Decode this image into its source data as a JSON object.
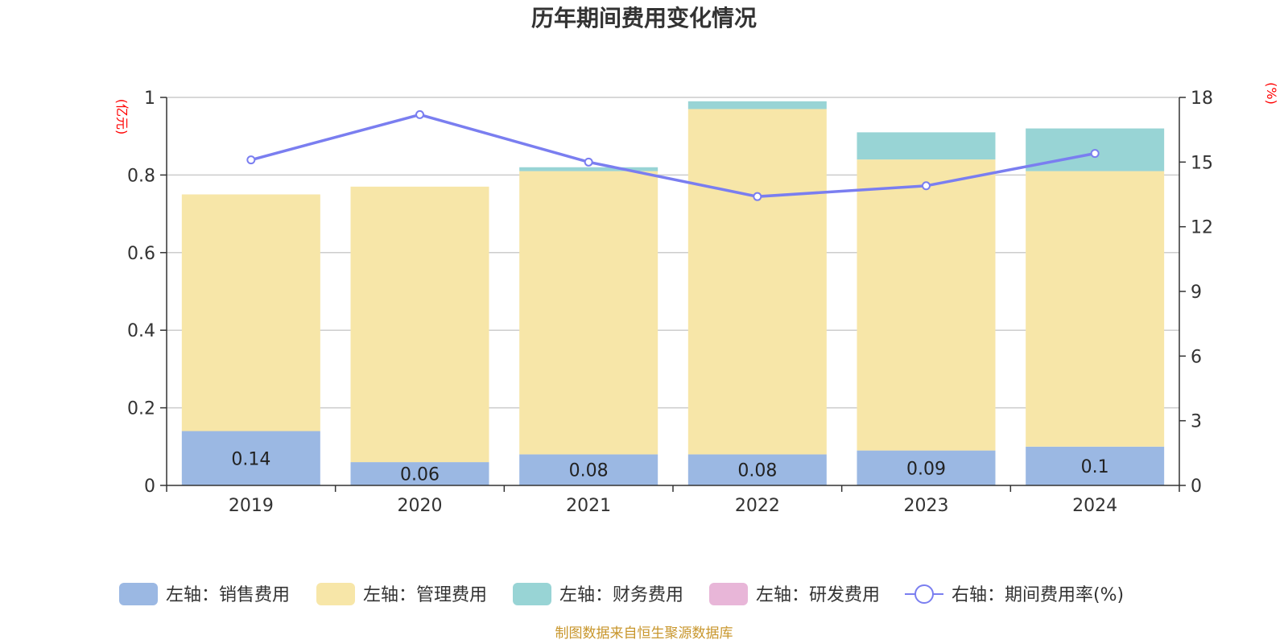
{
  "title": "历年期间费用变化情况",
  "left_unit": "(亿元)",
  "right_unit": "(%)",
  "source": "制图数据来自恒生聚源数据库",
  "colors": {
    "sales": "#9bb8e3",
    "admin": "#f7e6a8",
    "finance": "#98d4d5",
    "rd": "#e8b6d8",
    "rate": "#7a7ef0"
  },
  "chart_data": {
    "type": "bar",
    "stacked": true,
    "categories": [
      "2019",
      "2020",
      "2021",
      "2022",
      "2023",
      "2024"
    ],
    "series": [
      {
        "key": "sales",
        "name": "左轴：销售费用",
        "axis": "left",
        "values": [
          0.14,
          0.06,
          0.08,
          0.08,
          0.09,
          0.1
        ],
        "labels": [
          "0.14",
          "0.06",
          "0.08",
          "0.08",
          "0.09",
          "0.1"
        ]
      },
      {
        "key": "admin",
        "name": "左轴：管理费用",
        "axis": "left",
        "values": [
          0.61,
          0.71,
          0.73,
          0.89,
          0.75,
          0.71
        ]
      },
      {
        "key": "finance",
        "name": "左轴：财务费用",
        "axis": "left",
        "values": [
          0.0,
          0.0,
          0.01,
          0.02,
          0.07,
          0.11
        ]
      },
      {
        "key": "rd",
        "name": "左轴：研发费用",
        "axis": "left",
        "values": [
          0,
          0,
          0,
          0,
          0,
          0
        ]
      },
      {
        "key": "rate",
        "name": "右轴：期间费用率(%)",
        "axis": "right",
        "type": "line",
        "values": [
          15.1,
          17.2,
          15.0,
          13.4,
          13.9,
          15.4
        ]
      }
    ],
    "left_axis": {
      "ylim": [
        0,
        1
      ],
      "ticks": [
        "0",
        "0.2",
        "0.4",
        "0.6",
        "0.8",
        "1"
      ]
    },
    "right_axis": {
      "ylim": [
        0,
        18
      ],
      "ticks": [
        "0",
        "3",
        "6",
        "9",
        "12",
        "15",
        "18"
      ]
    },
    "grid": true,
    "legend_position": "bottom"
  }
}
